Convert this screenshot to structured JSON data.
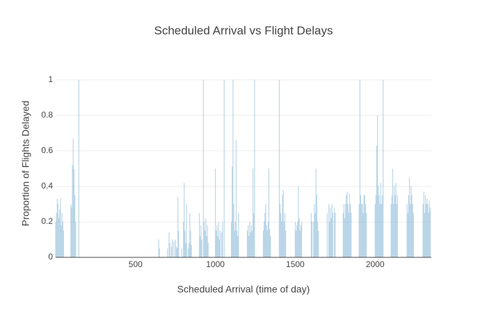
{
  "chart_data": {
    "type": "bar",
    "title": "Scheduled Arrival vs Flight Delays",
    "x_label": "Scheduled Arrival (time of day)",
    "y_label": "Proportion of Flights Delayed",
    "color": "#1f77b4",
    "opacity": 0.3,
    "grid": true,
    "xlim": [
      0,
      2352
    ],
    "ylim": [
      0,
      1.05
    ],
    "xticks": [
      500,
      1000,
      1500,
      2000
    ],
    "yticks": [
      0,
      0.2,
      0.4,
      0.6,
      0.8,
      1
    ],
    "x": [
      0,
      5,
      10,
      15,
      20,
      25,
      30,
      35,
      40,
      45,
      50,
      95,
      100,
      105,
      110,
      115,
      120,
      125,
      145,
      645,
      650,
      700,
      710,
      715,
      725,
      730,
      740,
      750,
      755,
      760,
      765,
      770,
      790,
      800,
      805,
      810,
      815,
      820,
      830,
      835,
      840,
      845,
      850,
      900,
      905,
      910,
      915,
      925,
      930,
      935,
      940,
      945,
      950,
      955,
      1000,
      1005,
      1010,
      1015,
      1020,
      1025,
      1030,
      1040,
      1045,
      1055,
      1100,
      1105,
      1110,
      1115,
      1120,
      1125,
      1130,
      1135,
      1140,
      1145,
      1200,
      1205,
      1210,
      1215,
      1220,
      1225,
      1230,
      1235,
      1240,
      1245,
      1300,
      1305,
      1310,
      1315,
      1320,
      1325,
      1330,
      1335,
      1340,
      1345,
      1400,
      1405,
      1410,
      1415,
      1420,
      1425,
      1430,
      1435,
      1440,
      1500,
      1505,
      1510,
      1515,
      1520,
      1525,
      1530,
      1535,
      1540,
      1600,
      1605,
      1615,
      1620,
      1625,
      1630,
      1635,
      1640,
      1645,
      1700,
      1710,
      1715,
      1720,
      1725,
      1730,
      1735,
      1745,
      1750,
      1800,
      1805,
      1810,
      1815,
      1820,
      1825,
      1830,
      1835,
      1840,
      1845,
      1850,
      1900,
      1905,
      1910,
      1915,
      1920,
      1925,
      1930,
      1935,
      1940,
      1945,
      2000,
      2005,
      2010,
      2015,
      2020,
      2025,
      2030,
      2035,
      2040,
      2045,
      2050,
      2100,
      2105,
      2110,
      2115,
      2120,
      2125,
      2130,
      2135,
      2140,
      2200,
      2205,
      2210,
      2215,
      2220,
      2225,
      2230,
      2235,
      2240,
      2300,
      2305,
      2310,
      2315,
      2320,
      2325,
      2330,
      2335,
      2340,
      2345
    ],
    "values": [
      0.2,
      0.25,
      0.33,
      0.3,
      0.22,
      0.27,
      0.33,
      0.18,
      0.25,
      0.2,
      0.15,
      0.3,
      0.28,
      0.52,
      0.67,
      0.5,
      0.35,
      0.2,
      1,
      0.1,
      0.05,
      0.05,
      0.14,
      0.08,
      0.06,
      0.1,
      0.09,
      0.1,
      0.06,
      0.05,
      0.34,
      0.15,
      0.05,
      0.2,
      0.42,
      0.15,
      0.08,
      0.3,
      0.05,
      0.08,
      0.25,
      0.15,
      0.07,
      0.25,
      0.12,
      0.18,
      0.1,
      1,
      0.2,
      0.15,
      0.22,
      0.12,
      0.18,
      0.08,
      0.5,
      0.15,
      0.18,
      0.12,
      0.2,
      0.1,
      0.15,
      0.14,
      0.2,
      1,
      0.2,
      0.51,
      1,
      0.3,
      0.15,
      0.2,
      0.66,
      0.15,
      0.12,
      0.25,
      0.15,
      0.18,
      0.12,
      0.2,
      0.14,
      0.18,
      0.15,
      0.5,
      0.25,
      1,
      0.15,
      0.2,
      0.25,
      0.3,
      0.18,
      0.15,
      0.2,
      0.5,
      0.16,
      0.12,
      1,
      0.3,
      0.25,
      0.2,
      0.35,
      0.38,
      0.2,
      0.25,
      0.15,
      0.2,
      0.15,
      0.18,
      0.2,
      0.4,
      0.22,
      0.15,
      0.18,
      0.2,
      0.25,
      0.2,
      0.2,
      0.3,
      0.25,
      0.5,
      0.35,
      0.2,
      0.15,
      0.25,
      0.3,
      0.2,
      0.28,
      0.22,
      0.3,
      0.25,
      0.28,
      0.25,
      0.25,
      0.3,
      0.22,
      0.3,
      0.35,
      0.37,
      0.3,
      0.25,
      0.36,
      0.3,
      0.25,
      0.3,
      1,
      0.35,
      0.3,
      0.3,
      0.25,
      0.35,
      0.35,
      0.3,
      0.25,
      0.3,
      0.35,
      0.63,
      0.8,
      0.4,
      0.35,
      0.3,
      0.42,
      0.3,
      0.35,
      1,
      0.3,
      0.35,
      0.5,
      0.3,
      0.4,
      0.35,
      0.42,
      0.3,
      0.35,
      0.3,
      0.25,
      0.35,
      0.45,
      0.3,
      0.4,
      0.35,
      0.3,
      0.25,
      0.3,
      0.37,
      0.25,
      0.35,
      0.3,
      0.33,
      0.3,
      0.25,
      0.32,
      0.28
    ]
  }
}
